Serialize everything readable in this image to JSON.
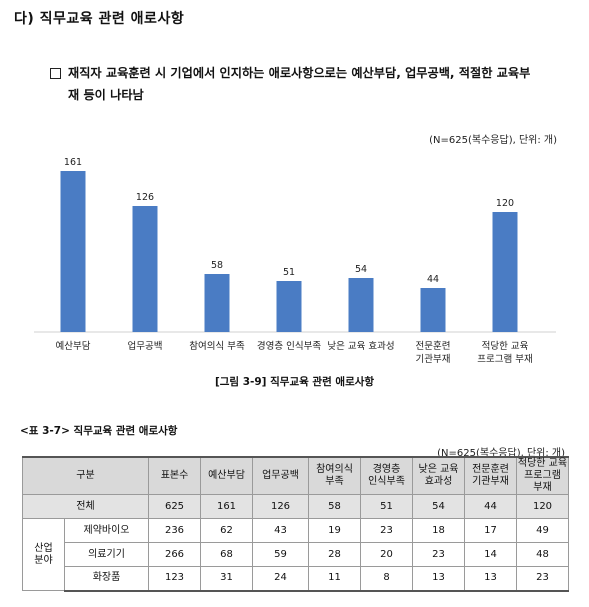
{
  "section_title": "다) 직무교육 관련 애로사항",
  "summary": {
    "line1": "재직자 교육훈련 시 기업에서 인지하는 애로사항으로는 예산부담, 업무공백, 적절한 교육부",
    "line2": "재 등이 나타남"
  },
  "chart_note": "(N=625(복수응답), 단위: 개)",
  "chart_data": {
    "type": "bar",
    "categories": [
      "예산부담",
      "업무공백",
      "참여의식 부족",
      "경영층 인식부족",
      "낮은 교육 효과성",
      "전문훈련 기관부재",
      "적당한 교육 프로그램 부재"
    ],
    "category_lines": [
      [
        "예산부담"
      ],
      [
        "업무공백"
      ],
      [
        "참여의식 부족"
      ],
      [
        "경영층 인식부족"
      ],
      [
        "낮은 교육 효과성"
      ],
      [
        "전문훈련",
        "기관부재"
      ],
      [
        "적당한 교육",
        "프로그램 부재"
      ]
    ],
    "values": [
      161,
      126,
      58,
      51,
      54,
      44,
      120
    ],
    "ylim": [
      0,
      161
    ],
    "grid": false,
    "legend": "none",
    "bar_color": "#4a7cc4"
  },
  "figure_caption": "[그림 3-9] 직무교육 관련 애로사항",
  "table_caption": "<표 3-7> 직무교육 관련 애로사항",
  "table_note": "(N=625(복수응답), 단위: 개)",
  "table": {
    "header": {
      "gubun": "구분",
      "cols": [
        "표본수",
        "예산부담",
        "업무공백",
        "참여의식\n부족",
        "경영층\n인식부족",
        "낮은 교육\n효과성",
        "전문훈련\n기관부재",
        "적당한 교육\n프로그램\n부재"
      ]
    },
    "total": {
      "label": "전체",
      "values": [
        "625",
        "161",
        "126",
        "58",
        "51",
        "54",
        "44",
        "120"
      ]
    },
    "group_label": "산업\n분야",
    "rows": [
      {
        "label": "제약바이오",
        "values": [
          "236",
          "62",
          "43",
          "19",
          "23",
          "18",
          "17",
          "49"
        ]
      },
      {
        "label": "의료기기",
        "values": [
          "266",
          "68",
          "59",
          "28",
          "20",
          "23",
          "14",
          "48"
        ]
      },
      {
        "label": "화장품",
        "values": [
          "123",
          "31",
          "24",
          "11",
          "8",
          "13",
          "13",
          "23"
        ]
      }
    ]
  }
}
